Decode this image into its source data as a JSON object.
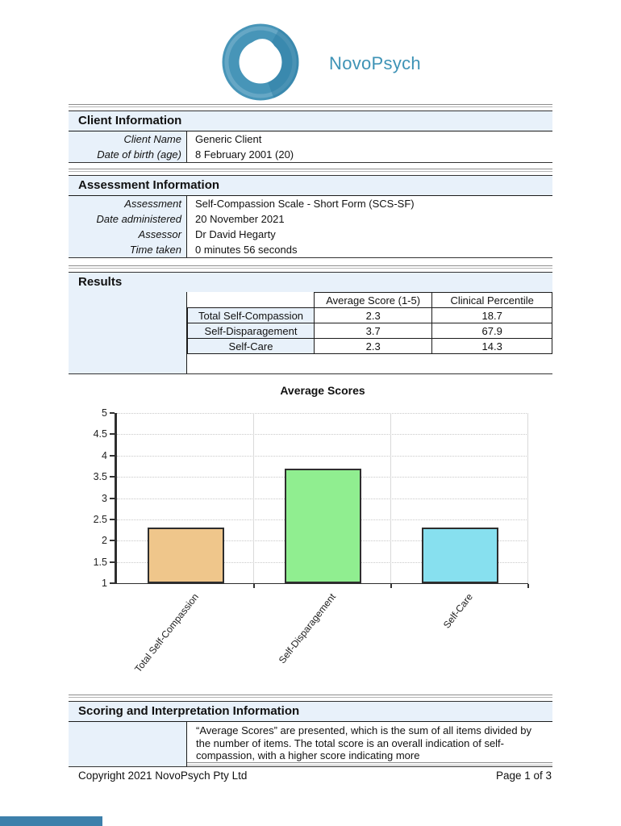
{
  "header": {
    "logo_text": "NovoPsych"
  },
  "client_info": {
    "title": "Client Information",
    "rows": [
      {
        "label": "Client Name",
        "value": "Generic Client"
      },
      {
        "label": "Date of birth (age)",
        "value": "8 February 2001 (20)"
      }
    ]
  },
  "assessment_info": {
    "title": "Assessment Information",
    "rows": [
      {
        "label": "Assessment",
        "value": "Self-Compassion Scale - Short Form (SCS-SF)"
      },
      {
        "label": "Date administered",
        "value": "20 November 2021"
      },
      {
        "label": "Assessor",
        "value": "Dr David Hegarty"
      },
      {
        "label": "Time taken",
        "value": "0 minutes 56 seconds"
      }
    ]
  },
  "results": {
    "title": "Results",
    "table": {
      "columns": [
        "",
        "Average Score (1-5)",
        "Clinical Percentile"
      ],
      "rows": [
        {
          "label": "Total Self-Compassion",
          "average_score": "2.3",
          "clinical_percentile": "18.7"
        },
        {
          "label": "Self-Disparagement",
          "average_score": "3.7",
          "clinical_percentile": "67.9"
        },
        {
          "label": "Self-Care",
          "average_score": "2.3",
          "clinical_percentile": "14.3"
        }
      ]
    }
  },
  "chart_data": {
    "type": "bar",
    "title": "Average Scores",
    "categories": [
      "Total Self-Compassion",
      "Self-Disparagement",
      "Self-Care"
    ],
    "values": [
      2.3,
      3.7,
      2.3
    ],
    "bar_colors": [
      "#efc68b",
      "#90ee90",
      "#87e0ef"
    ],
    "ylim": [
      1,
      5
    ],
    "yticks": [
      5,
      4.5,
      4,
      3.5,
      3,
      2.5,
      2,
      1.5,
      1
    ],
    "grid": true,
    "legend": "none",
    "xlabel": "",
    "ylabel": ""
  },
  "scoring_info": {
    "title": "Scoring and Interpretation Information",
    "text": "“Average Scores” are presented, which is the sum of all items divided by the number of items. The total score is an overall indication of self-compassion, with a higher score indicating more"
  },
  "footer": {
    "copyright": "Copyright 2021 NovoPsych Pty Ltd",
    "page": "Page 1 of 3"
  },
  "colors": {
    "accent": "#3e93b6",
    "section_background": "#e8f1fa",
    "bottom_bar": "#3d80ab"
  }
}
